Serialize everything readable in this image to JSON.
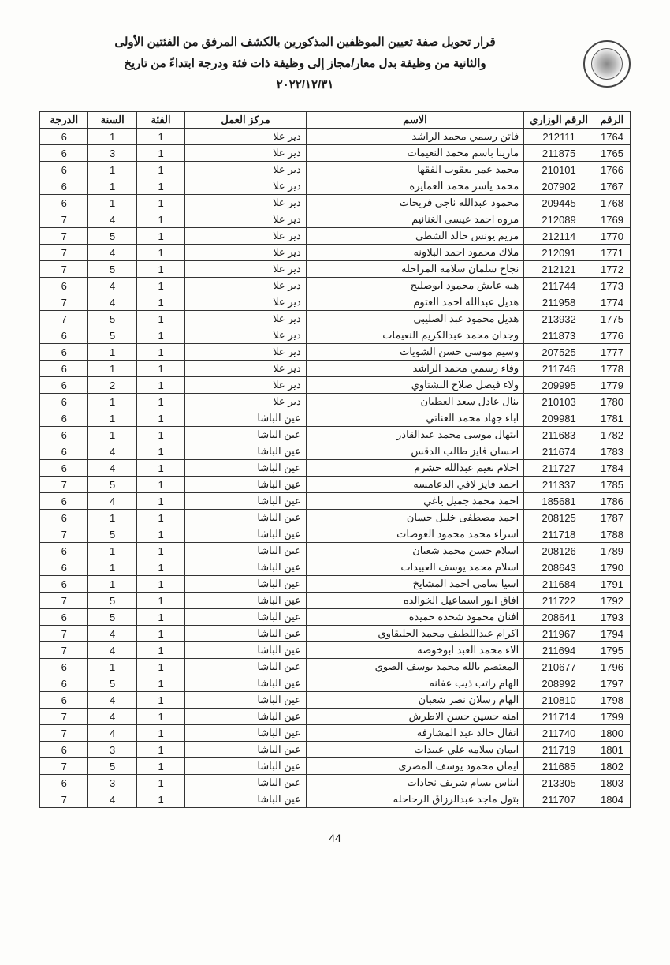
{
  "header": {
    "line1": "قرار تحويل صفة تعيين الموظفين المذكورين بالكشف المرفق من الفئتين الأولى",
    "line2": "والثانية من وظيفة بدل معار/مجاز إلى وظيفة ذات فئة ودرجة  ابتداءً من تاريخ",
    "line3": "٢٠٢٢/١٢/٣١"
  },
  "columns": [
    "الرقم",
    "الرقم الوزاري",
    "الاسم",
    "مركز العمل",
    "الفئة",
    "السنة",
    "الدرجة"
  ],
  "rows": [
    [
      "1764",
      "212111",
      "فاتن رسمي محمد الراشد",
      "دير علا",
      "1",
      "1",
      "6"
    ],
    [
      "1765",
      "211875",
      "مارينا باسم محمد النعيمات",
      "دير علا",
      "1",
      "3",
      "6"
    ],
    [
      "1766",
      "210101",
      "محمد عمر يعقوب الفقها",
      "دير علا",
      "1",
      "1",
      "6"
    ],
    [
      "1767",
      "207902",
      "محمد ياسر محمد العمايره",
      "دير علا",
      "1",
      "1",
      "6"
    ],
    [
      "1768",
      "209445",
      "محمود عبدالله ناجي فريحات",
      "دير علا",
      "1",
      "1",
      "6"
    ],
    [
      "1769",
      "212089",
      "مروه احمد عيسى الغنانيم",
      "دير علا",
      "1",
      "4",
      "7"
    ],
    [
      "1770",
      "212114",
      "مريم يونس خالد الشطي",
      "دير علا",
      "1",
      "5",
      "7"
    ],
    [
      "1771",
      "212091",
      "ملاك محمود احمد البلاونه",
      "دير علا",
      "1",
      "4",
      "7"
    ],
    [
      "1772",
      "212121",
      "نجاح سلمان سلامه المراحله",
      "دير علا",
      "1",
      "5",
      "7"
    ],
    [
      "1773",
      "211744",
      "هبه عايش محمود ابوصليح",
      "دير علا",
      "1",
      "4",
      "6"
    ],
    [
      "1774",
      "211958",
      "هديل عبدالله احمد العتوم",
      "دير علا",
      "1",
      "4",
      "7"
    ],
    [
      "1775",
      "213932",
      "هديل محمود عبد الصليبي",
      "دير علا",
      "1",
      "5",
      "7"
    ],
    [
      "1776",
      "211873",
      "وجدان محمد عبدالكريم النعيمات",
      "دير علا",
      "1",
      "5",
      "6"
    ],
    [
      "1777",
      "207525",
      "وسيم موسى حسن الشويات",
      "دير علا",
      "1",
      "1",
      "6"
    ],
    [
      "1778",
      "211746",
      "وفاء رسمي محمد الراشد",
      "دير علا",
      "1",
      "1",
      "6"
    ],
    [
      "1779",
      "209995",
      "ولاء فيصل صلاح البشتاوي",
      "دير علا",
      "1",
      "2",
      "6"
    ],
    [
      "1780",
      "210103",
      "ينال عادل سعد العطيان",
      "دير علا",
      "1",
      "1",
      "6"
    ],
    [
      "1781",
      "209981",
      "اباء جهاد محمد العناتي",
      "عين الباشا",
      "1",
      "1",
      "6"
    ],
    [
      "1782",
      "211683",
      "ابتهال موسى محمد عبدالقادر",
      "عين الباشا",
      "1",
      "1",
      "6"
    ],
    [
      "1783",
      "211674",
      "احسان فايز طالب الدقس",
      "عين الباشا",
      "1",
      "4",
      "6"
    ],
    [
      "1784",
      "211727",
      "احلام نعيم عبدالله خشرم",
      "عين الباشا",
      "1",
      "4",
      "6"
    ],
    [
      "1785",
      "211337",
      "احمد فايز لافي الدعامسه",
      "عين الباشا",
      "1",
      "5",
      "7"
    ],
    [
      "1786",
      "185681",
      "احمد محمد جميل ياغي",
      "عين الباشا",
      "1",
      "4",
      "6"
    ],
    [
      "1787",
      "208125",
      "احمد مصطفى خليل حسان",
      "عين الباشا",
      "1",
      "1",
      "6"
    ],
    [
      "1788",
      "211718",
      "اسراء محمد محمود العوضات",
      "عين الباشا",
      "1",
      "5",
      "7"
    ],
    [
      "1789",
      "208126",
      "اسلام حسن محمد شعبان",
      "عين الباشا",
      "1",
      "1",
      "6"
    ],
    [
      "1790",
      "208643",
      "اسلام محمد يوسف العبيدات",
      "عين الباشا",
      "1",
      "1",
      "6"
    ],
    [
      "1791",
      "211684",
      "اسيا سامي احمد المشايخ",
      "عين الباشا",
      "1",
      "1",
      "6"
    ],
    [
      "1792",
      "211722",
      "افاق انور اسماعيل الخوالده",
      "عين الباشا",
      "1",
      "5",
      "7"
    ],
    [
      "1793",
      "208641",
      "افنان محمود شحده حميده",
      "عين الباشا",
      "1",
      "5",
      "6"
    ],
    [
      "1794",
      "211967",
      "اكرام عبداللطيف محمد الحليقاوي",
      "عين الباشا",
      "1",
      "4",
      "7"
    ],
    [
      "1795",
      "211694",
      "الاء محمد العبد ابوخوصه",
      "عين الباشا",
      "1",
      "4",
      "7"
    ],
    [
      "1796",
      "210677",
      "المعتصم بالله محمد يوسف الصوي",
      "عين الباشا",
      "1",
      "1",
      "6"
    ],
    [
      "1797",
      "208992",
      "الهام راتب ذيب عفانه",
      "عين الباشا",
      "1",
      "5",
      "6"
    ],
    [
      "1798",
      "210810",
      "الهام رسلان نصر شعبان",
      "عين الباشا",
      "1",
      "4",
      "6"
    ],
    [
      "1799",
      "211714",
      "امنه حسين حسن الاطرش",
      "عين الباشا",
      "1",
      "4",
      "7"
    ],
    [
      "1800",
      "211740",
      "انفال خالد عبد المشارفه",
      "عين الباشا",
      "1",
      "4",
      "7"
    ],
    [
      "1801",
      "211719",
      "ايمان سلامه علي عبيدات",
      "عين الباشا",
      "1",
      "3",
      "6"
    ],
    [
      "1802",
      "211685",
      "ايمان محمود يوسف المصرى",
      "عين الباشا",
      "1",
      "5",
      "7"
    ],
    [
      "1803",
      "213305",
      "ايناس بسام شريف نجادات",
      "عين الباشا",
      "1",
      "3",
      "6"
    ],
    [
      "1804",
      "211707",
      "بتول ماجد عبدالرزاق الرحاحله",
      "عين الباشا",
      "1",
      "4",
      "7"
    ]
  ],
  "pageNumber": "44"
}
